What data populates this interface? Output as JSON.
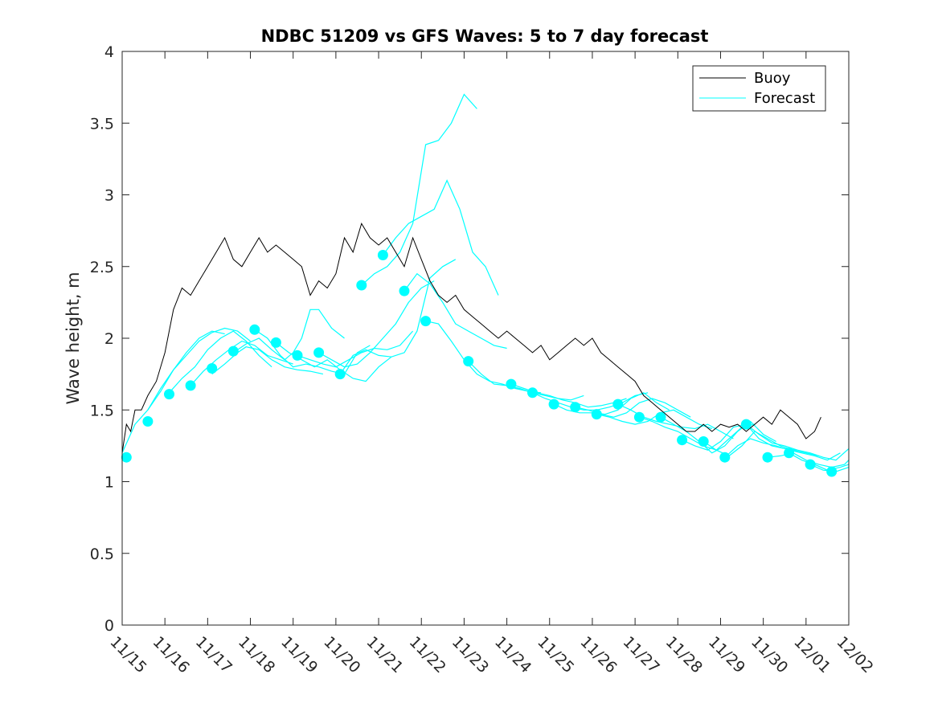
{
  "chart_data": {
    "type": "line",
    "title": "NDBC 51209 vs GFS Waves: 5 to 7 day forecast",
    "xlabel": "",
    "ylabel": "Wave height, m",
    "xlim": [
      0,
      17
    ],
    "ylim": [
      0,
      4
    ],
    "x_tick_values": [
      0,
      1,
      2,
      3,
      4,
      5,
      6,
      7,
      8,
      9,
      10,
      11,
      12,
      13,
      14,
      15,
      16,
      17
    ],
    "x_tick_labels": [
      "11/15",
      "11/16",
      "11/17",
      "11/18",
      "11/19",
      "11/20",
      "11/21",
      "11/22",
      "11/23",
      "11/24",
      "11/25",
      "11/26",
      "11/27",
      "11/28",
      "11/29",
      "11/30",
      "12/01",
      "12/02"
    ],
    "y_ticks": [
      0,
      0.5,
      1,
      1.5,
      2,
      2.5,
      3,
      3.5,
      4
    ],
    "y_tick_labels": [
      "0",
      "0.5",
      "1",
      "1.5",
      "2",
      "2.5",
      "3",
      "3.5",
      "4"
    ],
    "legend": {
      "location": "top-right",
      "entries": [
        {
          "label": "Buoy",
          "color": "#000000"
        },
        {
          "label": "Forecast",
          "color": "#00ffff"
        }
      ]
    },
    "colors": {
      "buoy": "#000000",
      "forecast": "#00ffff",
      "axis": "#262626"
    },
    "series": [
      {
        "name": "Buoy",
        "x": [
          0,
          0.1,
          0.2,
          0.3,
          0.45,
          0.6,
          0.8,
          1.0,
          1.2,
          1.4,
          1.6,
          1.8,
          2.0,
          2.2,
          2.4,
          2.6,
          2.8,
          3.0,
          3.2,
          3.4,
          3.6,
          3.8,
          4.0,
          4.2,
          4.4,
          4.6,
          4.8,
          5.0,
          5.2,
          5.4,
          5.6,
          5.8,
          6.0,
          6.2,
          6.4,
          6.6,
          6.8,
          7.0,
          7.2,
          7.4,
          7.6,
          7.8,
          8.0,
          8.2,
          8.4,
          8.6,
          8.8,
          9.0,
          9.2,
          9.4,
          9.6,
          9.8,
          10.0,
          10.2,
          10.4,
          10.6,
          10.8,
          11.0,
          11.2,
          11.4,
          11.6,
          11.8,
          12.0,
          12.2,
          12.4,
          12.6,
          12.8,
          13.0,
          13.2,
          13.4,
          13.6,
          13.8,
          14.0,
          14.2,
          14.4,
          14.6,
          14.8,
          15.0,
          15.2,
          15.4,
          15.6,
          15.8,
          16.0,
          16.2,
          16.35
        ],
        "y": [
          1.2,
          1.4,
          1.35,
          1.5,
          1.5,
          1.6,
          1.7,
          1.9,
          2.2,
          2.35,
          2.3,
          2.4,
          2.5,
          2.6,
          2.7,
          2.55,
          2.5,
          2.6,
          2.7,
          2.6,
          2.65,
          2.6,
          2.55,
          2.5,
          2.3,
          2.4,
          2.35,
          2.45,
          2.7,
          2.6,
          2.8,
          2.7,
          2.65,
          2.7,
          2.6,
          2.5,
          2.7,
          2.55,
          2.4,
          2.3,
          2.25,
          2.3,
          2.2,
          2.15,
          2.1,
          2.05,
          2.0,
          2.05,
          2.0,
          1.95,
          1.9,
          1.95,
          1.85,
          1.9,
          1.95,
          2.0,
          1.95,
          2.0,
          1.9,
          1.85,
          1.8,
          1.75,
          1.7,
          1.6,
          1.55,
          1.5,
          1.45,
          1.4,
          1.35,
          1.35,
          1.4,
          1.35,
          1.4,
          1.38,
          1.4,
          1.35,
          1.4,
          1.45,
          1.4,
          1.5,
          1.45,
          1.4,
          1.3,
          1.35,
          1.45
        ]
      },
      {
        "name": "Forecast",
        "segments": [
          {
            "x": [
              0,
              0.3,
              0.6,
              0.9,
              1.2,
              1.5,
              1.8,
              2.1,
              2.4
            ],
            "y": [
              1.2,
              1.4,
              1.5,
              1.63,
              1.78,
              1.9,
              2.0,
              2.05,
              2.03
            ]
          },
          {
            "x": [
              0.6,
              0.9,
              1.2,
              1.5,
              1.8,
              2.1,
              2.4,
              2.7,
              3.0
            ],
            "y": [
              1.5,
              1.65,
              1.78,
              1.88,
              1.98,
              2.04,
              2.07,
              2.05,
              1.98
            ]
          },
          {
            "x": [
              1.1,
              1.4,
              1.7,
              2.0,
              2.3,
              2.6,
              2.9,
              3.2,
              3.5
            ],
            "y": [
              1.62,
              1.72,
              1.8,
              1.92,
              2.0,
              2.05,
              1.98,
              1.88,
              1.8
            ]
          },
          {
            "x": [
              1.6,
              1.9,
              2.2,
              2.5,
              2.8,
              3.1,
              3.4,
              3.7,
              4.0
            ],
            "y": [
              1.67,
              1.77,
              1.85,
              1.92,
              1.98,
              1.95,
              1.88,
              1.85,
              1.82
            ]
          },
          {
            "x": [
              2.1,
              2.4,
              2.7,
              2.9,
              3.2,
              3.5,
              3.8,
              4.1,
              4.4,
              4.7
            ],
            "y": [
              1.75,
              1.82,
              1.9,
              1.94,
              1.92,
              1.85,
              1.8,
              1.78,
              1.77,
              1.75
            ]
          },
          {
            "x": [
              2.6,
              2.9,
              3.2,
              3.5,
              3.8,
              4.0,
              4.2,
              4.4,
              4.6,
              4.9,
              5.2
            ],
            "y": [
              1.9,
              1.96,
              2.0,
              1.92,
              1.85,
              1.9,
              2.0,
              2.2,
              2.2,
              2.07,
              2.0
            ]
          },
          {
            "x": [
              3.1,
              3.4,
              3.7,
              4.0,
              4.3,
              4.6,
              4.9,
              5.2,
              5.5,
              5.8
            ],
            "y": [
              2.06,
              2.0,
              1.88,
              1.8,
              1.82,
              1.8,
              1.77,
              1.75,
              1.9,
              1.95
            ]
          },
          {
            "x": [
              3.6,
              3.9,
              4.2,
              4.5,
              4.8,
              5.1,
              5.4,
              5.7,
              6.0,
              6.3
            ],
            "y": [
              1.97,
              1.9,
              1.85,
              1.8,
              1.85,
              1.78,
              1.72,
              1.7,
              1.8,
              1.87
            ]
          },
          {
            "x": [
              4.1,
              4.4,
              4.7,
              5.0,
              5.3,
              5.6,
              5.9,
              6.2,
              6.5,
              6.8
            ],
            "y": [
              1.88,
              1.85,
              1.82,
              1.8,
              1.85,
              1.9,
              1.93,
              1.92,
              1.95,
              2.05
            ]
          },
          {
            "x": [
              4.6,
              4.9,
              5.2,
              5.5,
              5.8,
              6.1,
              6.4,
              6.7,
              7.0,
              7.3
            ],
            "y": [
              1.9,
              1.85,
              1.8,
              1.82,
              1.9,
              2.0,
              2.1,
              2.25,
              2.35,
              2.4
            ]
          },
          {
            "x": [
              5.1,
              5.4,
              5.7,
              6.0,
              6.3,
              6.6,
              6.9,
              7.2,
              7.5,
              7.8
            ],
            "y": [
              1.75,
              1.88,
              1.92,
              1.88,
              1.87,
              1.9,
              2.05,
              2.42,
              2.5,
              2.55
            ]
          },
          {
            "x": [
              5.6,
              5.9,
              6.2,
              6.5,
              6.8,
              7.1,
              7.4,
              7.7,
              8.0,
              8.3
            ],
            "y": [
              2.37,
              2.45,
              2.5,
              2.6,
              2.8,
              3.35,
              3.38,
              3.5,
              3.7,
              3.6
            ]
          },
          {
            "x": [
              6.1,
              6.4,
              6.7,
              7.0,
              7.3,
              7.6,
              7.9,
              8.2,
              8.5,
              8.8
            ],
            "y": [
              2.58,
              2.7,
              2.8,
              2.85,
              2.9,
              3.1,
              2.9,
              2.6,
              2.5,
              2.3
            ]
          },
          {
            "x": [
              6.6,
              6.9,
              7.2,
              7.5,
              7.8,
              8.1,
              8.4,
              8.7,
              9.0
            ],
            "y": [
              2.33,
              2.45,
              2.38,
              2.25,
              2.1,
              2.05,
              2.0,
              1.95,
              1.93
            ]
          },
          {
            "x": [
              7.1,
              7.4,
              7.7,
              8.0,
              8.3,
              8.6,
              8.9,
              9.2,
              9.5,
              9.8
            ],
            "y": [
              2.12,
              2.1,
              1.98,
              1.85,
              1.75,
              1.7,
              1.68,
              1.65,
              1.63,
              1.62
            ]
          },
          {
            "x": [
              8.1,
              8.4,
              8.7,
              9.0,
              9.3,
              9.6,
              9.9,
              10.2,
              10.5,
              10.8
            ],
            "y": [
              1.84,
              1.75,
              1.68,
              1.67,
              1.65,
              1.62,
              1.6,
              1.58,
              1.57,
              1.6
            ]
          },
          {
            "x": [
              9.1,
              9.4,
              9.7,
              10.0,
              10.3,
              10.6,
              10.9,
              11.2,
              11.5,
              11.8
            ],
            "y": [
              1.68,
              1.65,
              1.62,
              1.6,
              1.57,
              1.55,
              1.52,
              1.53,
              1.55,
              1.58
            ]
          },
          {
            "x": [
              9.6,
              9.9,
              10.2,
              10.5,
              10.8,
              11.1,
              11.4,
              11.7,
              12.0,
              12.3
            ],
            "y": [
              1.62,
              1.58,
              1.55,
              1.52,
              1.5,
              1.5,
              1.52,
              1.55,
              1.6,
              1.62
            ]
          },
          {
            "x": [
              10.1,
              10.4,
              10.7,
              11.0,
              11.3,
              11.6,
              11.9,
              12.2,
              12.5,
              12.8
            ],
            "y": [
              1.54,
              1.5,
              1.48,
              1.48,
              1.47,
              1.5,
              1.58,
              1.62,
              1.55,
              1.5
            ]
          },
          {
            "x": [
              10.6,
              10.9,
              11.2,
              11.5,
              11.8,
              12.1,
              12.4,
              12.7,
              13.0,
              13.3
            ],
            "y": [
              1.52,
              1.5,
              1.47,
              1.45,
              1.48,
              1.55,
              1.58,
              1.55,
              1.5,
              1.45
            ]
          },
          {
            "x": [
              11.1,
              11.4,
              11.7,
              12.0,
              12.3,
              12.6,
              12.9,
              13.2,
              13.5,
              13.8
            ],
            "y": [
              1.47,
              1.45,
              1.42,
              1.4,
              1.42,
              1.48,
              1.5,
              1.45,
              1.4,
              1.37
            ]
          },
          {
            "x": [
              11.6,
              11.9,
              12.2,
              12.5,
              12.8,
              13.1,
              13.4,
              13.7,
              14.0,
              14.3
            ],
            "y": [
              1.54,
              1.5,
              1.45,
              1.42,
              1.4,
              1.38,
              1.37,
              1.4,
              1.35,
              1.3
            ]
          },
          {
            "x": [
              12.1,
              12.4,
              12.7,
              13.0,
              13.3,
              13.6,
              13.9,
              14.2,
              14.5,
              14.8
            ],
            "y": [
              1.45,
              1.42,
              1.38,
              1.35,
              1.3,
              1.25,
              1.22,
              1.3,
              1.38,
              1.4
            ]
          },
          {
            "x": [
              12.6,
              12.9,
              13.2,
              13.5,
              13.8,
              14.1,
              14.4,
              14.7,
              15.0,
              15.3
            ],
            "y": [
              1.45,
              1.4,
              1.35,
              1.28,
              1.2,
              1.25,
              1.35,
              1.42,
              1.33,
              1.28
            ]
          },
          {
            "x": [
              13.1,
              13.4,
              13.7,
              14.0,
              14.3,
              14.6,
              14.9,
              15.2,
              15.5,
              15.8
            ],
            "y": [
              1.29,
              1.25,
              1.22,
              1.28,
              1.38,
              1.4,
              1.33,
              1.27,
              1.25,
              1.22
            ]
          },
          {
            "x": [
              13.6,
              13.9,
              14.2,
              14.5,
              14.8,
              15.1,
              15.4,
              15.7,
              16.0,
              16.3
            ],
            "y": [
              1.28,
              1.22,
              1.18,
              1.25,
              1.35,
              1.3,
              1.25,
              1.22,
              1.2,
              1.18
            ]
          },
          {
            "x": [
              14.1,
              14.4,
              14.7,
              15.0,
              15.3,
              15.6,
              15.9,
              16.2,
              16.5,
              16.8
            ],
            "y": [
              1.17,
              1.25,
              1.3,
              1.27,
              1.25,
              1.22,
              1.2,
              1.18,
              1.15,
              1.2
            ]
          },
          {
            "x": [
              14.6,
              14.9,
              15.2,
              15.5,
              15.8,
              16.1,
              16.4,
              16.7,
              17.0
            ],
            "y": [
              1.4,
              1.3,
              1.25,
              1.23,
              1.22,
              1.2,
              1.17,
              1.15,
              1.23
            ]
          },
          {
            "x": [
              15.1,
              15.4,
              15.7,
              16.0,
              16.3,
              16.6,
              16.9,
              17.0
            ],
            "y": [
              1.17,
              1.18,
              1.2,
              1.15,
              1.12,
              1.1,
              1.12,
              1.15
            ]
          },
          {
            "x": [
              15.6,
              15.9,
              16.2,
              16.5,
              16.8,
              17.0
            ],
            "y": [
              1.2,
              1.15,
              1.12,
              1.08,
              1.1,
              1.12
            ]
          },
          {
            "x": [
              16.1,
              16.4,
              16.7,
              17.0
            ],
            "y": [
              1.12,
              1.08,
              1.07,
              1.1
            ]
          }
        ],
        "markers": {
          "x": [
            0.1,
            0.6,
            1.1,
            1.6,
            2.1,
            2.6,
            3.1,
            3.6,
            4.1,
            4.6,
            5.1,
            5.6,
            6.1,
            6.6,
            7.1,
            8.1,
            9.1,
            9.6,
            10.1,
            10.6,
            11.1,
            11.6,
            12.1,
            12.6,
            13.1,
            13.6,
            14.1,
            14.6,
            15.1,
            15.6,
            16.1,
            16.6
          ],
          "y": [
            1.17,
            1.42,
            1.61,
            1.67,
            1.79,
            1.91,
            2.06,
            1.97,
            1.88,
            1.9,
            1.75,
            2.37,
            2.58,
            2.33,
            2.12,
            1.84,
            1.68,
            1.62,
            1.54,
            1.52,
            1.47,
            1.54,
            1.45,
            1.45,
            1.29,
            1.28,
            1.17,
            1.4,
            1.17,
            1.2,
            1.12,
            1.07
          ]
        }
      }
    ]
  }
}
